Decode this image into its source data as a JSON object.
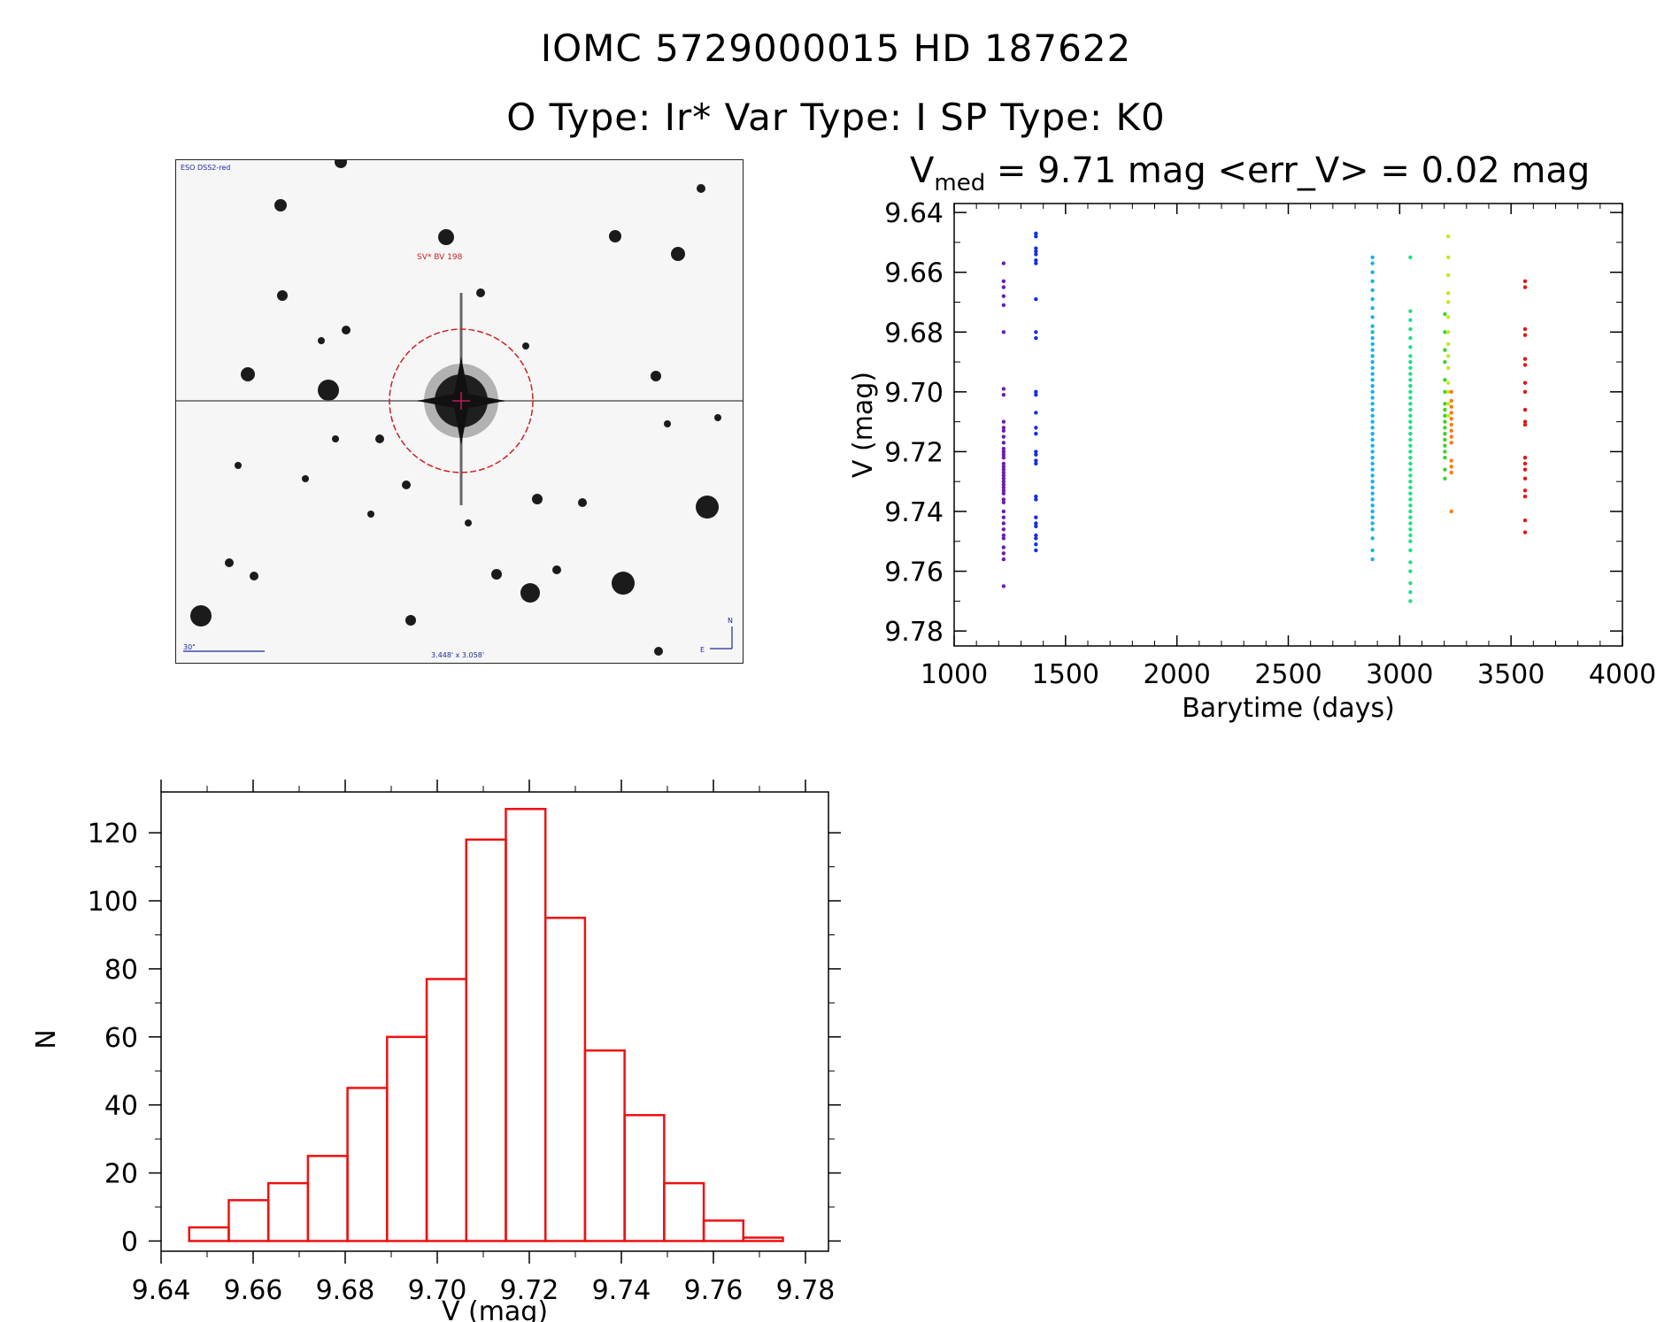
{
  "header": {
    "title": "IOMC 5729000015    HD 187622",
    "subtitle": "O Type: Ir*  Var Type: I  SP Type: K0"
  },
  "sky_image": {
    "survey_label": "ESO DSS2-red",
    "object_label": "SV* BV 198",
    "scale_label": "30\"",
    "fov_label": "3.448' x 3.058'",
    "north_label": "N",
    "east_label": "E"
  },
  "lightcurve": {
    "title_prefix": "V",
    "title_sub": "med",
    "title_rest": " = 9.71 mag <err_V> = 0.02 mag"
  },
  "colors": {
    "hist": "#ee1111",
    "circle": "#cc2222",
    "label_blue": "#1a2a9a",
    "label_red": "#cc2222"
  },
  "chart_data": [
    {
      "type": "scatter",
      "xlabel": "Barytime (days)",
      "ylabel": "V (mag)",
      "xlim": [
        1000,
        4000
      ],
      "ylim": [
        9.785,
        9.637
      ],
      "y_inverted": true,
      "xticks": [
        1000,
        1500,
        2000,
        2500,
        3000,
        3500,
        4000
      ],
      "yticks": [
        9.64,
        9.66,
        9.68,
        9.7,
        9.72,
        9.74,
        9.76,
        9.78
      ],
      "grid": false,
      "series": [
        {
          "x": 1222,
          "color": "#6a1fa8",
          "values": [
            9.657,
            9.663,
            9.665,
            9.668,
            9.671,
            9.68,
            9.699,
            9.701,
            9.71,
            9.712,
            9.713,
            9.715,
            9.717,
            9.719,
            9.72,
            9.721,
            9.722,
            9.724,
            9.725,
            9.726,
            9.727,
            9.728,
            9.729,
            9.73,
            9.731,
            9.732,
            9.733,
            9.734,
            9.736,
            9.737,
            9.74,
            9.742,
            9.744,
            9.746,
            9.748,
            9.749,
            9.752,
            9.754,
            9.756,
            9.765
          ]
        },
        {
          "x": 1367,
          "color": "#1530e0",
          "values": [
            9.647,
            9.648,
            9.652,
            9.653,
            9.654,
            9.656,
            9.657,
            9.669,
            9.68,
            9.682,
            9.7,
            9.701,
            9.707,
            9.712,
            9.714,
            9.72,
            9.721,
            9.723,
            9.724,
            9.735,
            9.736,
            9.742,
            9.744,
            9.745,
            9.748,
            9.749,
            9.751,
            9.753
          ]
        },
        {
          "x": 2878,
          "color": "#1ab2e8",
          "values": [
            9.655,
            9.657,
            9.66,
            9.663,
            9.666,
            9.669,
            9.672,
            9.675,
            9.678,
            9.68,
            9.682,
            9.684,
            9.686,
            9.688,
            9.69,
            9.692,
            9.694,
            9.696,
            9.698,
            9.7,
            9.702,
            9.704,
            9.706,
            9.708,
            9.71,
            9.712,
            9.714,
            9.716,
            9.718,
            9.72,
            9.722,
            9.724,
            9.726,
            9.728,
            9.73,
            9.732,
            9.734,
            9.736,
            9.738,
            9.74,
            9.742,
            9.744,
            9.746,
            9.749,
            9.753,
            9.756
          ]
        },
        {
          "x": 3048,
          "color": "#1de08a",
          "values": [
            9.655,
            9.673,
            9.676,
            9.679,
            9.682,
            9.685,
            9.688,
            9.69,
            9.692,
            9.694,
            9.696,
            9.698,
            9.7,
            9.702,
            9.704,
            9.706,
            9.708,
            9.71,
            9.712,
            9.714,
            9.716,
            9.718,
            9.72,
            9.722,
            9.724,
            9.726,
            9.728,
            9.73,
            9.732,
            9.734,
            9.736,
            9.738,
            9.74,
            9.742,
            9.744,
            9.746,
            9.748,
            9.75,
            9.753,
            9.757,
            9.76,
            9.764,
            9.767,
            9.77
          ]
        },
        {
          "x": 3203,
          "color": "#3fd12a",
          "values": [
            9.674,
            9.68,
            9.686,
            9.69,
            9.696,
            9.7,
            9.704,
            9.706,
            9.708,
            9.71,
            9.712,
            9.714,
            9.716,
            9.718,
            9.72,
            9.722,
            9.726,
            9.729
          ]
        },
        {
          "x": 3218,
          "color": "#c6e81a",
          "values": [
            9.648,
            9.655,
            9.661,
            9.667,
            9.67,
            9.675,
            9.68,
            9.684,
            9.688,
            9.692,
            9.697,
            9.7,
            9.704,
            9.708
          ]
        },
        {
          "x": 3232,
          "color": "#ff7a10",
          "values": [
            9.7,
            9.703,
            9.705,
            9.707,
            9.709,
            9.711,
            9.713,
            9.715,
            9.717,
            9.723,
            9.725,
            9.727,
            9.74
          ]
        },
        {
          "x": 3563,
          "color": "#e81414",
          "values": [
            9.663,
            9.665,
            9.679,
            9.681,
            9.689,
            9.691,
            9.697,
            9.7,
            9.706,
            9.71,
            9.711,
            9.722,
            9.724,
            9.726,
            9.729,
            9.733,
            9.735,
            9.743,
            9.747
          ]
        }
      ]
    },
    {
      "type": "bar",
      "xlabel": "V (mag)",
      "ylabel": "N",
      "xlim": [
        9.64,
        9.785
      ],
      "ylim": [
        -3,
        132
      ],
      "xticks": [
        9.64,
        9.66,
        9.68,
        9.7,
        9.72,
        9.74,
        9.76,
        9.78
      ],
      "yticks": [
        0,
        20,
        40,
        60,
        80,
        100,
        120
      ],
      "bin_width": 0.0086,
      "bin_start": 9.6461,
      "values": [
        4,
        12,
        17,
        25,
        45,
        60,
        77,
        118,
        127,
        95,
        56,
        37,
        17,
        6,
        1
      ],
      "color": "#ee1111"
    }
  ]
}
